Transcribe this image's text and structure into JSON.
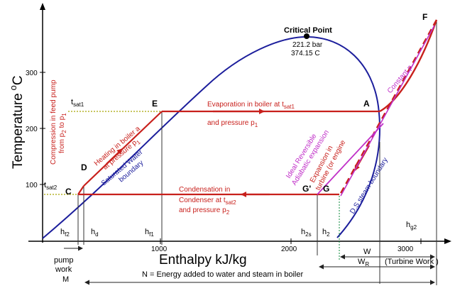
{
  "axes": {
    "x_title": "Enthalpy kJ/kg",
    "y_title": "Temperature",
    "y_title_sup": "o",
    "y_title_unit": "C",
    "x_ticks": [
      "1000",
      "2000",
      "3000"
    ],
    "y_ticks": [
      "100",
      "200",
      "300"
    ]
  },
  "critical_point": {
    "label": "Critical Point",
    "pressure": "221.2 bar",
    "temperature": "374.15 C"
  },
  "points": {
    "A": "A",
    "C": "C",
    "D": "D",
    "E": "E",
    "F": "F",
    "G": "G",
    "G_prime": "G'"
  },
  "saturation": {
    "tsat1": "t",
    "tsat1_sub": "sat1",
    "tsat2": "t",
    "tsat2_sub": "sat2"
  },
  "enthalpy_labels": {
    "hf2": "h",
    "hf2_sub": "f2",
    "hd": "h",
    "hd_sub": "d",
    "hf1": "h",
    "hf1_sub": "f1",
    "h2s": "h",
    "h2s_sub": "2s",
    "h2": "h",
    "h2_sub": "2",
    "hg2": "h",
    "hg2_sub": "g2"
  },
  "annotations": {
    "compression_1": "Compression in feed pump",
    "compression_2": "from p",
    "compression_2_sub1": "2",
    "compression_2_mid": " to p",
    "compression_2_sub2": "1",
    "heating_1": "Heating in boiler a",
    "heating_2": "at pressure p",
    "heating_2_sub": "1",
    "sat_water_1": "Saturated Water",
    "sat_water_2": "boundary",
    "evap_1": "Evaporation in boiler at t",
    "evap_1_sub": "sat1",
    "evap_2": "and pressure p",
    "evap_2_sub": "1",
    "const_p": "Constant p",
    "ideal_1": "Ideal Reversible",
    "ideal_2": "Adiabatic expansion",
    "expansion_1": "Expansion in",
    "expansion_2": "turbine (or engine",
    "ds_steam": "D.S steam boundary",
    "cond_1": "Condensation in",
    "cond_2": "Condenser at t",
    "cond_2_sub": "sat2",
    "cond_3": "and pressure p",
    "cond_3_sub": "2"
  },
  "bottom": {
    "pump_1": "pump",
    "pump_2": "work",
    "pump_3": "M",
    "w": "W",
    "wr": "W",
    "wr_sub": "R",
    "turbine_work": "(Turbine Work )",
    "n_energy": "N = Energy added to water and steam in boiler"
  },
  "colors": {
    "cycle": "#c8201c",
    "boundary": "#1c1e9c",
    "expansion": "#c030c8",
    "guide": "#a8a400",
    "dimension": "#222222"
  }
}
